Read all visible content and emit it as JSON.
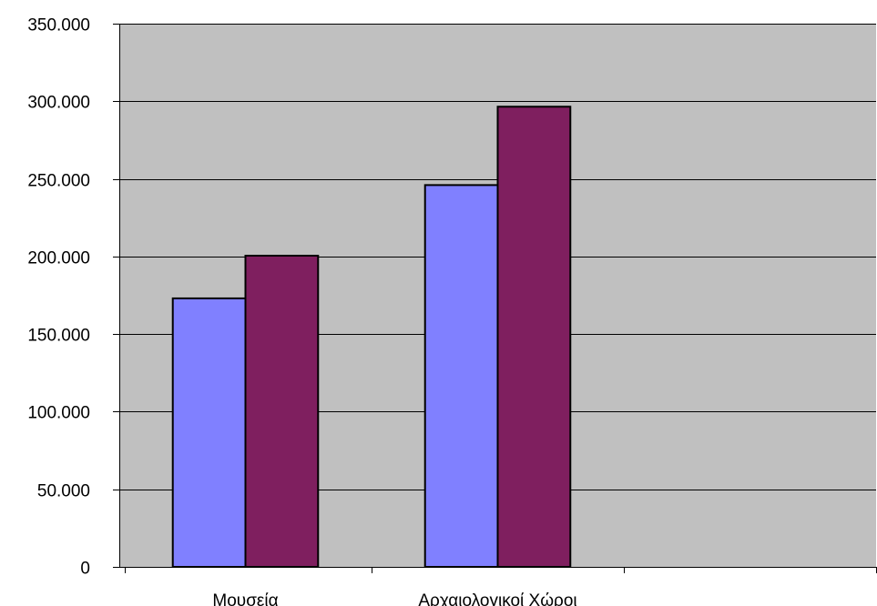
{
  "chart_data": {
    "type": "bar",
    "categories": [
      "Μουσεία",
      "Αρχαιολογικοί Χώροι",
      ""
    ],
    "series": [
      {
        "color": "#8080FF",
        "values": [
          173000,
          246000,
          null
        ]
      },
      {
        "color": "#7F1F5F",
        "values": [
          200500,
          296500,
          null
        ]
      }
    ],
    "ylim": [
      0,
      350000
    ],
    "yticks": [
      0,
      50000,
      100000,
      150000,
      200000,
      250000,
      300000,
      350000
    ],
    "ytick_labels": [
      "0",
      "50.000",
      "100.000",
      "150.000",
      "200.000",
      "250.000",
      "300.000",
      "350.000"
    ],
    "grid": true,
    "plot_background": "#C0C0C0",
    "title": "",
    "xlabel": "",
    "ylabel": ""
  }
}
